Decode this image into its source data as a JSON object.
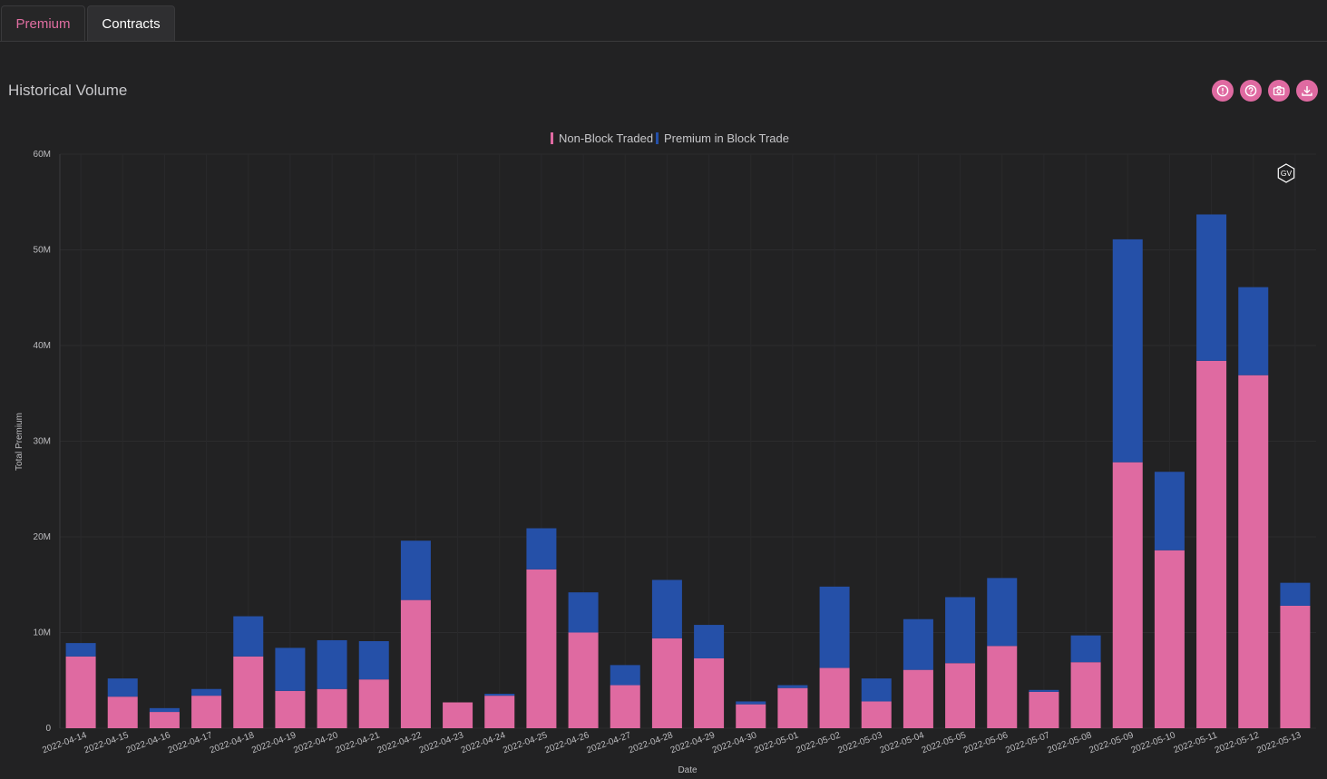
{
  "tabs": [
    {
      "label": "Premium",
      "active": true
    },
    {
      "label": "Contracts",
      "active": false
    }
  ],
  "card": {
    "title": "Historical Volume",
    "toolbar_icons": [
      "alert-circle-icon",
      "help-circle-icon",
      "camera-icon",
      "download-icon"
    ],
    "badge_label": "GV"
  },
  "colors": {
    "non_block": "#df6aa1",
    "block": "#2550a8",
    "accent": "#e06ea1"
  },
  "chart_data": {
    "type": "bar",
    "stacked": true,
    "title": "",
    "xlabel": "Date",
    "ylabel": "Total Premium",
    "ylim": [
      0,
      60000000
    ],
    "yticks": [
      "0",
      "10M",
      "20M",
      "30M",
      "40M",
      "50M",
      "60M"
    ],
    "legend_placement": "top-center",
    "grid": true,
    "categories": [
      "2022-04-14",
      "2022-04-15",
      "2022-04-16",
      "2022-04-17",
      "2022-04-18",
      "2022-04-19",
      "2022-04-20",
      "2022-04-21",
      "2022-04-22",
      "2022-04-23",
      "2022-04-24",
      "2022-04-25",
      "2022-04-26",
      "2022-04-27",
      "2022-04-28",
      "2022-04-29",
      "2022-04-30",
      "2022-05-01",
      "2022-05-02",
      "2022-05-03",
      "2022-05-04",
      "2022-05-05",
      "2022-05-06",
      "2022-05-07",
      "2022-05-08",
      "2022-05-09",
      "2022-05-10",
      "2022-05-11",
      "2022-05-12",
      "2022-05-13"
    ],
    "series": [
      {
        "name": "Non-Block Traded",
        "color": "#df6aa1",
        "values": [
          7500000,
          3300000,
          1700000,
          3400000,
          7500000,
          3900000,
          4100000,
          5100000,
          13400000,
          2700000,
          3400000,
          16600000,
          10000000,
          4500000,
          9400000,
          7300000,
          2500000,
          4200000,
          6300000,
          2800000,
          6100000,
          6800000,
          8600000,
          3800000,
          6900000,
          27800000,
          18600000,
          38400000,
          36900000,
          12800000
        ]
      },
      {
        "name": "Premium in Block Trade",
        "color": "#2550a8",
        "values": [
          1400000,
          1900000,
          400000,
          700000,
          4200000,
          4500000,
          5100000,
          4000000,
          6200000,
          0,
          200000,
          4300000,
          4200000,
          2100000,
          6100000,
          3500000,
          300000,
          300000,
          8500000,
          2400000,
          5300000,
          6900000,
          7100000,
          200000,
          2800000,
          23300000,
          8200000,
          15300000,
          9200000,
          2400000
        ]
      }
    ]
  }
}
